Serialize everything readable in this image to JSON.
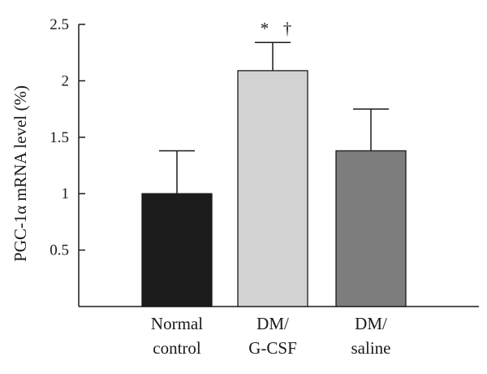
{
  "chart_data": {
    "type": "bar",
    "ylabel": "PGC-1α mRNA level (%)",
    "ylim": [
      0,
      2.5
    ],
    "yticks": [
      "0.5",
      "1",
      "1.5",
      "2",
      "2.5"
    ],
    "categories": [
      [
        "Normal",
        "control"
      ],
      [
        "DM/",
        "G-CSF"
      ],
      [
        "DM/",
        "saline"
      ]
    ],
    "values": [
      1.0,
      2.09,
      1.38
    ],
    "errors": [
      0.38,
      0.25,
      0.37
    ],
    "colors": [
      "#1c1c1c",
      "#d2d2d2",
      "#7d7d7d"
    ],
    "annotations": [
      {
        "category_index": 1,
        "text": "*"
      },
      {
        "category_index": 1,
        "text": "†"
      }
    ],
    "grid": false,
    "legend": "none"
  }
}
